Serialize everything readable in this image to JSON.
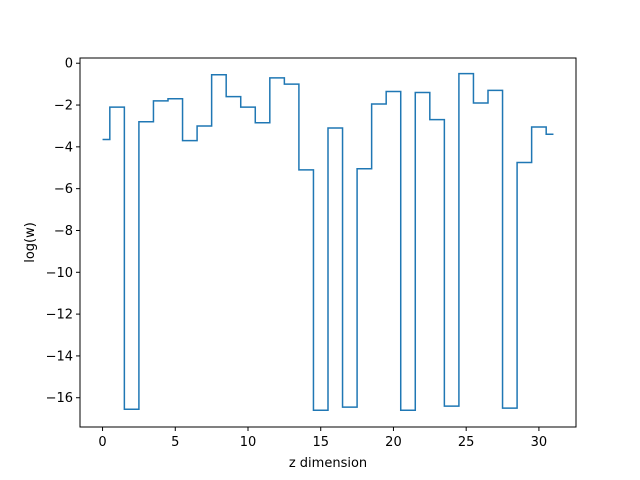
{
  "chart_data": {
    "type": "line",
    "drawstyle": "steps-mid",
    "title": "",
    "xlabel": "z dimension",
    "ylabel": "log(w)",
    "xlim": [
      -1.55,
      32.55
    ],
    "ylim": [
      -17.4,
      0.25
    ],
    "xticks": [
      0,
      5,
      10,
      15,
      20,
      25,
      30
    ],
    "yticks": [
      0,
      -2,
      -4,
      -6,
      -8,
      -10,
      -12,
      -14,
      -16
    ],
    "ytick_labels": [
      "0",
      "−2",
      "−4",
      "−6",
      "−8",
      "−10",
      "−12",
      "−14",
      "−16"
    ],
    "grid": false,
    "series": [
      {
        "color": "#1f77b4",
        "x": [
          0,
          1,
          2,
          3,
          4,
          5,
          6,
          7,
          8,
          9,
          10,
          11,
          12,
          13,
          14,
          15,
          16,
          17,
          18,
          19,
          20,
          21,
          22,
          23,
          24,
          25,
          26,
          27,
          28,
          29,
          30,
          31
        ],
        "y": [
          -3.65,
          -2.1,
          -16.55,
          -2.8,
          -1.8,
          -1.7,
          -3.7,
          -3.0,
          -0.55,
          -1.6,
          -2.1,
          -2.85,
          -0.7,
          -1.0,
          -5.1,
          -16.6,
          -3.1,
          -16.45,
          -5.05,
          -1.95,
          -1.35,
          -16.6,
          -1.4,
          -2.7,
          -16.4,
          -0.5,
          -1.9,
          -1.3,
          -16.5,
          -4.75,
          -3.05,
          -3.4
        ]
      }
    ]
  }
}
